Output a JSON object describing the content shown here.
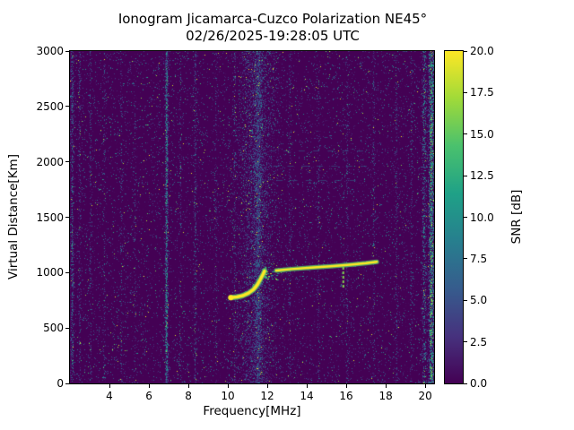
{
  "figure": {
    "title_line1": "Ionogram Jicamarca-Cuzco Polarization NE45°",
    "title_line2": "02/26/2025-19:28:05 UTC"
  },
  "axes": {
    "xlabel": "Frequency[MHz]",
    "ylabel": "Virtual Distance[Km]",
    "x_range": [
      2.0,
      20.45
    ],
    "y_range": [
      0,
      3000
    ],
    "x_ticks": [
      4,
      6,
      8,
      10,
      12,
      14,
      16,
      18,
      20
    ],
    "y_ticks": [
      0,
      500,
      1000,
      1500,
      2000,
      2500,
      3000
    ]
  },
  "colorbar": {
    "label": "SNR [dB]",
    "range": [
      0,
      20
    ],
    "ticks": [
      0,
      2.5,
      5,
      7.5,
      10,
      12.5,
      15,
      17.5,
      20
    ],
    "colormap": "viridis",
    "viridis_stops": [
      "#440154",
      "#46327e",
      "#365c8d",
      "#277f8e",
      "#1fa187",
      "#4ac16d",
      "#a0da39",
      "#fde725"
    ]
  },
  "chart_data": {
    "type": "heatmap",
    "title": "Ionogram Jicamarca-Cuzco Polarization NE45° — 02/26/2025-19:28:05 UTC",
    "xlabel": "Frequency[MHz]",
    "ylabel": "Virtual Distance[Km]",
    "x_range_mhz": [
      2.0,
      20.45
    ],
    "y_range_km": [
      0,
      3000
    ],
    "snr_range_db": [
      0,
      20
    ],
    "background": "near-0 dB speckle noise over the whole frequency/virtual-distance map",
    "traces": [
      {
        "name": "first-hop ionospheric echo trace",
        "snr_db": 20,
        "width": 3.5,
        "start_blob": true,
        "points_mhz_km": [
          [
            10.15,
            775
          ],
          [
            10.45,
            780
          ],
          [
            10.75,
            792
          ],
          [
            11.05,
            815
          ],
          [
            11.3,
            848
          ],
          [
            11.5,
            893
          ],
          [
            11.65,
            940
          ],
          [
            11.78,
            985
          ],
          [
            11.86,
            1015
          ]
        ]
      },
      {
        "name": "second echo trace",
        "snr_db": 18,
        "width": 2.5,
        "start_blob": false,
        "points_mhz_km": [
          [
            12.45,
            1018
          ],
          [
            13.2,
            1032
          ],
          [
            14.2,
            1046
          ],
          [
            15.2,
            1058
          ],
          [
            16.2,
            1072
          ],
          [
            17.0,
            1085
          ],
          [
            17.55,
            1098
          ]
        ]
      }
    ],
    "spikes": [
      {
        "freq_mhz": 15.85,
        "km_range": [
          865,
          1068
        ],
        "snr_db": 16
      },
      {
        "freq_mhz": 11.92,
        "km_range": [
          948,
          1058
        ],
        "snr_db": 13
      }
    ],
    "scatter_cluster": {
      "freq_mhz": [
        11.85,
        12.5
      ],
      "km": [
        935,
        1025
      ],
      "count": 22,
      "snr_db": [
        8,
        18
      ]
    },
    "rfi_bands": [
      {
        "freq_mhz": 2.12,
        "width_mhz": 0.07,
        "density": 0.5,
        "max_snr_db": 9
      },
      {
        "freq_mhz": 2.5,
        "width_mhz": 0.05,
        "density": 0.22,
        "max_snr_db": 7
      },
      {
        "freq_mhz": 3.05,
        "width_mhz": 0.05,
        "density": 0.18,
        "max_snr_db": 7
      },
      {
        "freq_mhz": 3.75,
        "width_mhz": 0.05,
        "density": 0.15,
        "max_snr_db": 6
      },
      {
        "freq_mhz": 4.6,
        "width_mhz": 0.05,
        "density": 0.15,
        "max_snr_db": 6
      },
      {
        "freq_mhz": 5.3,
        "width_mhz": 0.05,
        "density": 0.12,
        "max_snr_db": 6
      },
      {
        "freq_mhz": 6.9,
        "width_mhz": 0.07,
        "density": 0.8,
        "max_snr_db": 14
      },
      {
        "freq_mhz": 7.6,
        "width_mhz": 0.05,
        "density": 0.15,
        "max_snr_db": 7
      },
      {
        "freq_mhz": 8.35,
        "width_mhz": 0.06,
        "density": 0.28,
        "max_snr_db": 8
      },
      {
        "freq_mhz": 9.4,
        "width_mhz": 0.05,
        "density": 0.15,
        "max_snr_db": 6
      },
      {
        "freq_mhz": 10.35,
        "width_mhz": 0.05,
        "density": 0.25,
        "max_snr_db": 6
      },
      {
        "freq_mhz": 11.45,
        "width_mhz": 0.85,
        "density": 0.32,
        "max_snr_db": 4.5
      },
      {
        "freq_mhz": 11.55,
        "width_mhz": 0.18,
        "density": 0.4,
        "max_snr_db": 6.5
      },
      {
        "freq_mhz": 13.15,
        "width_mhz": 0.05,
        "density": 0.15,
        "max_snr_db": 6
      },
      {
        "freq_mhz": 14.6,
        "width_mhz": 0.05,
        "density": 0.12,
        "max_snr_db": 6
      },
      {
        "freq_mhz": 16.05,
        "width_mhz": 0.05,
        "density": 0.2,
        "max_snr_db": 7
      },
      {
        "freq_mhz": 17.4,
        "width_mhz": 0.05,
        "density": 0.15,
        "max_snr_db": 7
      },
      {
        "freq_mhz": 18.55,
        "width_mhz": 0.05,
        "density": 0.18,
        "max_snr_db": 7
      },
      {
        "freq_mhz": 19.3,
        "width_mhz": 0.05,
        "density": 0.15,
        "max_snr_db": 7
      },
      {
        "freq_mhz": 19.95,
        "width_mhz": 0.1,
        "density": 0.35,
        "max_snr_db": 12
      },
      {
        "freq_mhz": 20.32,
        "width_mhz": 0.14,
        "density": 0.75,
        "max_snr_db": 19
      }
    ],
    "h_dashes": {
      "rows_km": [
        2100,
        1965,
        1835
      ],
      "freq_mhz": [
        12.1,
        16.9
      ],
      "dash_mhz": 0.32,
      "gap_mhz": 0.42,
      "snr_db": 6.5
    },
    "noise": {
      "seed": 1337,
      "base_density": 0.11,
      "bright_fraction": 0.05
    }
  }
}
